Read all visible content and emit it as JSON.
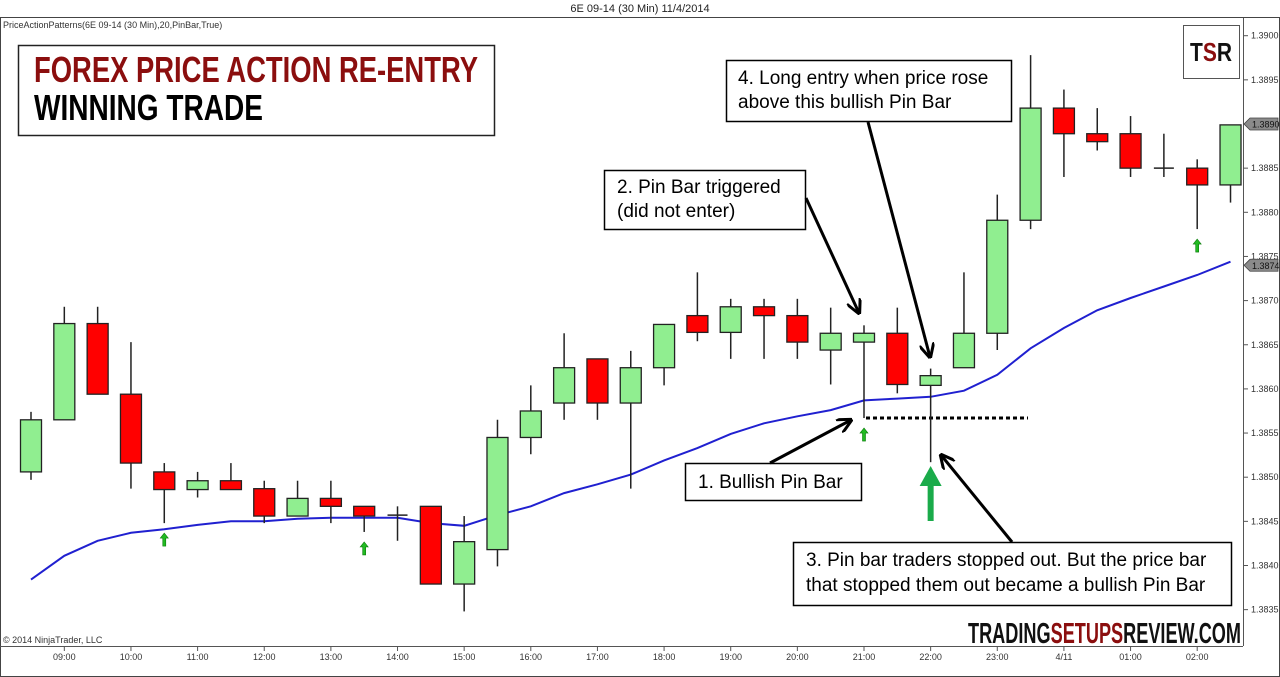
{
  "window_title": "6E 09-14 (30 Min)  11/4/2014",
  "indicator_label": "PriceActionPatterns(6E 09-14 (30 Min),20,PinBar,True)",
  "copyright": "© 2014 NinjaTrader, LLC",
  "headline": {
    "line1": "FOREX PRICE ACTION RE-ENTRY",
    "line2": "WINNING TRADE"
  },
  "logo": {
    "tsr_t": "T",
    "tsr_s": "S",
    "tsr_r": "R",
    "site_part1": "TRADING",
    "site_part2": "SETUPS",
    "site_part3": "REVIEW.COM"
  },
  "annotations": {
    "a1": "1. Bullish  Pin Bar",
    "a2_line1": "2. Pin Bar triggered",
    "a2_line2": "(did not enter)",
    "a3_line1": "3. Pin bar traders stopped out. But the price bar",
    "a3_line2": "that stopped them out became a bullish  Pin Bar",
    "a4_line1": "4. Long entry when price rose",
    "a4_line2": "above this bullish  Pin Bar"
  },
  "colors": {
    "bull": "#90EE90",
    "bear": "#FF0000",
    "ma": "#2020D0",
    "signal_arrow": "#22BB22",
    "entry_arrow": "#1AAB4A",
    "title_red": "#8B0E0E"
  },
  "chart_data": {
    "type": "candlestick",
    "title": "6E 09-14 (30 Min)  11/4/2014",
    "ylim": [
      1.3833,
      1.3902
    ],
    "yticks": [
      "1.3835",
      "1.3840",
      "1.3845",
      "1.3850",
      "1.3855",
      "1.3860",
      "1.3865",
      "1.3870",
      "1.3875",
      "1.3880",
      "1.3885",
      "1.3895",
      "1.3900"
    ],
    "xticks": [
      "09:00",
      "10:00",
      "11:00",
      "12:00",
      "13:00",
      "14:00",
      "15:00",
      "16:00",
      "17:00",
      "18:00",
      "19:00",
      "20:00",
      "21:00",
      "22:00",
      "23:00",
      "4/11",
      "01:00",
      "02:00"
    ],
    "times": [
      "08:30",
      "09:00",
      "09:30",
      "10:00",
      "10:30",
      "11:00",
      "11:30",
      "12:00",
      "12:30",
      "13:00",
      "13:30",
      "14:00",
      "14:30",
      "15:00",
      "15:30",
      "16:00",
      "16:30",
      "17:00",
      "17:30",
      "18:00",
      "18:30",
      "19:00",
      "19:30",
      "20:00",
      "20:30",
      "21:00",
      "21:30",
      "22:00",
      "22:30",
      "23:00",
      "23:30",
      "00:00",
      "00:30",
      "01:00",
      "01:30",
      "02:00",
      "02:30"
    ],
    "ohlc": [
      [
        1.38506,
        1.38574,
        1.38497,
        1.38565
      ],
      [
        1.38565,
        1.38693,
        1.38565,
        1.38674
      ],
      [
        1.38674,
        1.38693,
        1.38594,
        1.38594
      ],
      [
        1.38594,
        1.38653,
        1.38487,
        1.38516
      ],
      [
        1.38506,
        1.38516,
        1.38448,
        1.38486
      ],
      [
        1.38486,
        1.38506,
        1.38477,
        1.38496
      ],
      [
        1.38496,
        1.38516,
        1.38486,
        1.38486
      ],
      [
        1.38487,
        1.38496,
        1.38448,
        1.38456
      ],
      [
        1.38456,
        1.38496,
        1.38456,
        1.38476
      ],
      [
        1.38476,
        1.38496,
        1.38448,
        1.38467
      ],
      [
        1.38467,
        1.38467,
        1.38438,
        1.38456
      ],
      [
        1.38457,
        1.38467,
        1.38428,
        1.38457
      ],
      [
        1.38467,
        1.38467,
        1.38379,
        1.38379
      ],
      [
        1.38379,
        1.38456,
        1.38348,
        1.38427
      ],
      [
        1.38418,
        1.38565,
        1.38399,
        1.38545
      ],
      [
        1.38545,
        1.38604,
        1.38526,
        1.38575
      ],
      [
        1.38584,
        1.38663,
        1.38565,
        1.38624
      ],
      [
        1.38634,
        1.38634,
        1.38565,
        1.38584
      ],
      [
        1.38584,
        1.38643,
        1.38487,
        1.38624
      ],
      [
        1.38624,
        1.38673,
        1.38604,
        1.38673
      ],
      [
        1.38683,
        1.38732,
        1.38654,
        1.38664
      ],
      [
        1.38664,
        1.38702,
        1.38634,
        1.38693
      ],
      [
        1.38693,
        1.38702,
        1.38634,
        1.38683
      ],
      [
        1.38683,
        1.38702,
        1.38634,
        1.38653
      ],
      [
        1.38644,
        1.38692,
        1.38605,
        1.38663
      ],
      [
        1.38653,
        1.38672,
        1.38567,
        1.38663
      ],
      [
        1.38663,
        1.38692,
        1.38595,
        1.38605
      ],
      [
        1.38604,
        1.38623,
        1.38517,
        1.38615
      ],
      [
        1.38624,
        1.38732,
        1.38624,
        1.38663
      ],
      [
        1.38663,
        1.3882,
        1.38644,
        1.38791
      ],
      [
        1.38791,
        1.38978,
        1.38781,
        1.38918
      ],
      [
        1.38918,
        1.38939,
        1.3884,
        1.38889
      ],
      [
        1.38889,
        1.38918,
        1.3887,
        1.3888
      ],
      [
        1.38889,
        1.38909,
        1.3884,
        1.3885
      ],
      [
        1.3885,
        1.38889,
        1.3884,
        1.3885
      ],
      [
        1.3885,
        1.3886,
        1.38781,
        1.38831
      ],
      [
        1.38831,
        1.38899,
        1.38811,
        1.38899
      ]
    ],
    "moving_average": [
      1.38384,
      1.38411,
      1.38428,
      1.38437,
      1.38441,
      1.38446,
      1.3845,
      1.3845,
      1.38453,
      1.38454,
      1.38454,
      1.38454,
      1.38448,
      1.38445,
      1.38457,
      1.38467,
      1.38482,
      1.38492,
      1.38503,
      1.38519,
      1.38533,
      1.38549,
      1.38561,
      1.38569,
      1.38576,
      1.38587,
      1.38589,
      1.38591,
      1.38598,
      1.38616,
      1.38646,
      1.38669,
      1.38689,
      1.38703,
      1.38716,
      1.38729,
      1.38744
    ],
    "pin_bar_signals": [
      "10:30",
      "13:30",
      "21:00",
      "02:00"
    ],
    "entry_bar": "22:00",
    "stop_level": 1.38567,
    "last_price_tag": "1.3890",
    "ma_price_tag": "1.3874"
  }
}
